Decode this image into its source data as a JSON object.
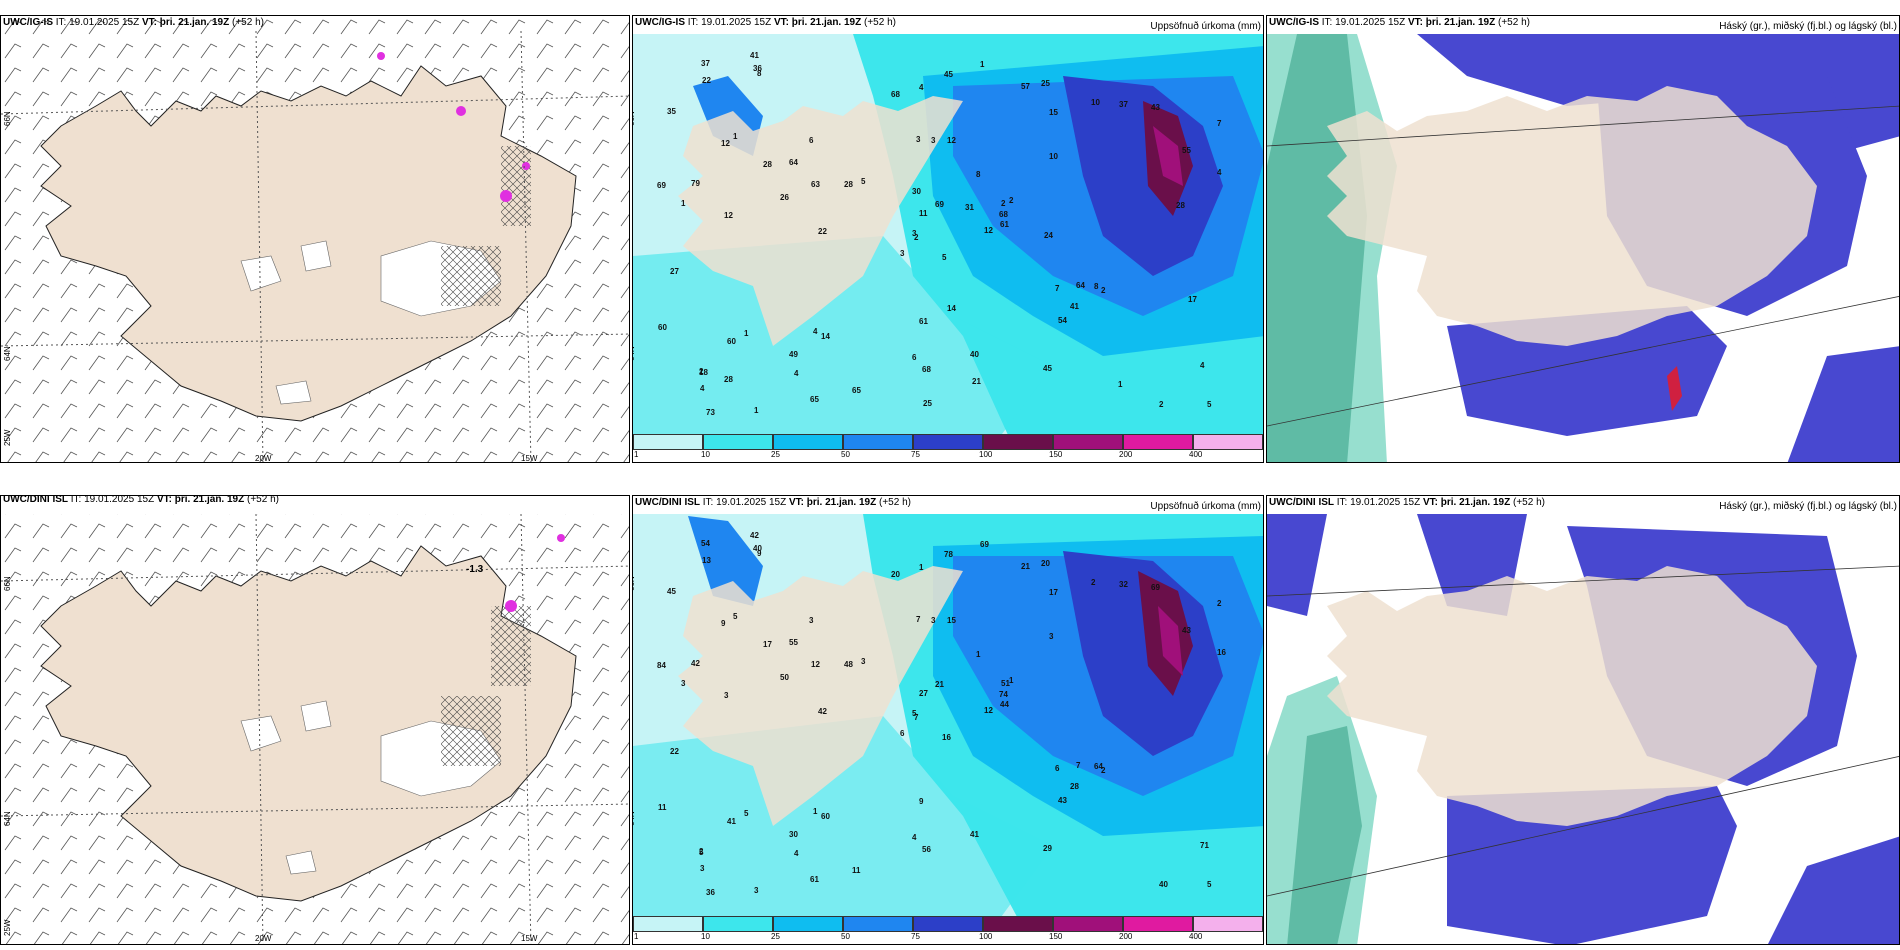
{
  "panels": [
    {
      "id": "p1",
      "model": "UWC/IG-IS",
      "it": "IT: 19.01.2025 15Z",
      "vt_label": "VT:",
      "vt_value": "þri. 21.jan. 19Z",
      "lead": "(+52 h)",
      "right_title": ""
    },
    {
      "id": "p2",
      "model": "UWC/IG-IS",
      "it": "IT: 19.01.2025 15Z",
      "vt_label": "VT:",
      "vt_value": "þri. 21.jan. 19Z",
      "lead": "(+52 h)",
      "right_title": "Uppsöfnuð úrkoma (mm)"
    },
    {
      "id": "p3",
      "model": "UWC/IG-IS",
      "it": "IT: 19.01.2025 15Z",
      "vt_label": "VT:",
      "vt_value": "þri. 21.jan. 19Z",
      "lead": "(+52 h)",
      "right_title": "Háský (gr.), miðský (fj.bl.) og lágský (bl.)"
    },
    {
      "id": "p4",
      "model": "UWC/DINI ISL",
      "it": "IT: 19.01.2025 15Z",
      "vt_label": "VT:",
      "vt_value": "þri. 21.jan. 19Z",
      "lead": "(+52 h)",
      "right_title": ""
    },
    {
      "id": "p5",
      "model": "UWC/DINI ISL",
      "it": "IT: 19.01.2025 15Z",
      "vt_label": "VT:",
      "vt_value": "þri. 21.jan. 19Z",
      "lead": "(+52 h)",
      "right_title": "Uppsöfnuð úrkoma (mm)"
    },
    {
      "id": "p6",
      "model": "UWC/DINI ISL",
      "it": "IT: 19.01.2025 15Z",
      "vt_label": "VT:",
      "vt_value": "þri. 21.jan. 19Z",
      "lead": "(+52 h)",
      "right_title": "Háský (gr.), miðský (fj.bl.) og lágský (bl.)"
    }
  ],
  "axis_labels": {
    "lat_66": "66N",
    "lat_64": "64N",
    "lon_20": "20W",
    "lon_15": "15W",
    "lon_25": "25W"
  },
  "precip_legend": {
    "ticks": [
      "1",
      "10",
      "25",
      "50",
      "75",
      "100",
      "150",
      "200",
      "400"
    ],
    "colors": [
      "#c6f4f6",
      "#3de6ec",
      "#0fbdf0",
      "#1f86f0",
      "#2c3fc8",
      "#6a0f4a",
      "#a0107a",
      "#e01aa0",
      "#f4b0ec"
    ]
  },
  "annotations": {
    "p4_value": "-1.3"
  },
  "precip_values_top": [
    "5",
    "12",
    "2",
    "2",
    "2",
    "14",
    "25",
    "12",
    "15",
    "12",
    "8",
    "5",
    "12",
    "7",
    "3",
    "10",
    "1",
    "3",
    "8",
    "1",
    "5",
    "4",
    "4",
    "3",
    "2",
    "2",
    "1",
    "4",
    "1",
    "7",
    "4",
    "3",
    "6",
    "11",
    "6",
    "10",
    "4",
    "2",
    "4",
    "8",
    "1",
    "28",
    "26",
    "54",
    "65",
    "69",
    "68",
    "73",
    "68",
    "61",
    "60",
    "55",
    "35",
    "41",
    "45",
    "49",
    "36",
    "37",
    "40",
    "43",
    "45",
    "22",
    "79",
    "64",
    "37",
    "41",
    "57",
    "68",
    "69",
    "60",
    "61",
    "65",
    "64",
    "63",
    "18",
    "22",
    "28",
    "27",
    "30",
    "21",
    "31",
    "28",
    "24",
    "17",
    "25",
    "28",
    "14",
    "1"
  ],
  "precip_values_bottom": [
    "16",
    "9",
    "7",
    "2",
    "51",
    "60",
    "20",
    "15",
    "17",
    "12",
    "9",
    "5",
    "3",
    "2",
    "6",
    "3",
    "3",
    "7",
    "1",
    "5",
    "3",
    "3",
    "4",
    "3",
    "1",
    "2",
    "5",
    "1",
    "3",
    "6",
    "16",
    "5",
    "4",
    "27",
    "3",
    "2",
    "1",
    "40",
    "71",
    "64",
    "69",
    "48",
    "50",
    "43",
    "61",
    "84",
    "74",
    "36",
    "56",
    "44",
    "41",
    "43",
    "45",
    "28",
    "29",
    "30",
    "40",
    "54",
    "41",
    "69",
    "78",
    "42",
    "42",
    "55",
    "32",
    "42",
    "21",
    "20",
    "21",
    "11",
    "9",
    "11",
    "7",
    "12",
    "5",
    "13",
    "17",
    "22"
  ]
}
